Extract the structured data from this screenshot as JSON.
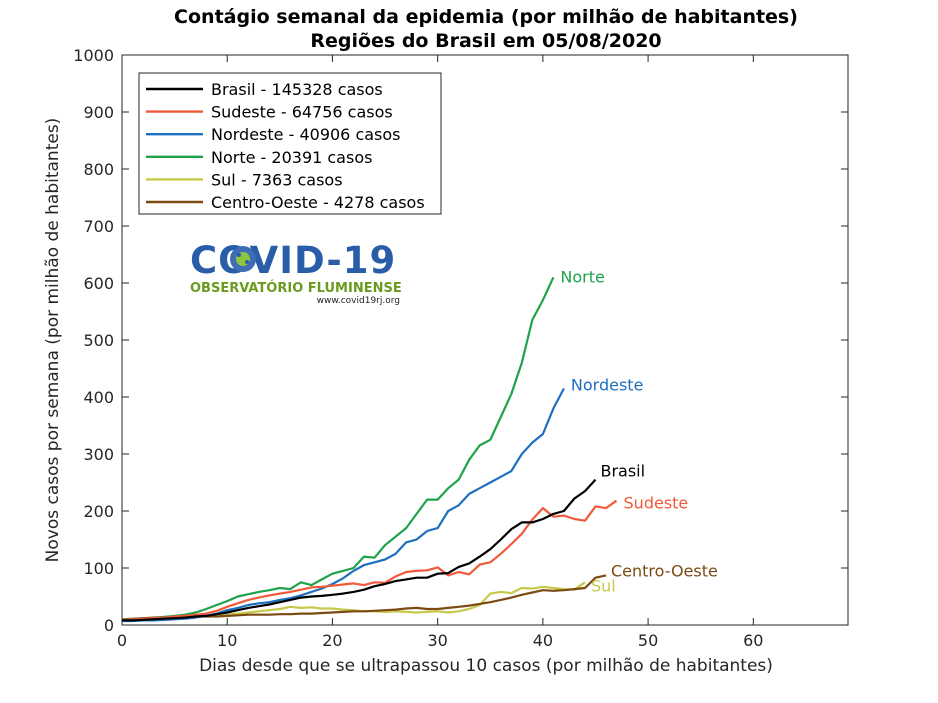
{
  "chart_data": {
    "type": "line",
    "title": "Contágio semanal da epidemia (por milhão de habitantes)",
    "subtitle": "Regiões do Brasil em 05/08/2020",
    "xlabel": "Dias desde que se ultrapassou 10 casos (por milhão de habitantes)",
    "ylabel": "Novos casos por semana (por milhão de habitantes)",
    "xlim": [
      0,
      69
    ],
    "ylim": [
      0,
      1000
    ],
    "xticks": [
      0,
      10,
      20,
      30,
      40,
      50,
      60
    ],
    "yticks": [
      0,
      100,
      200,
      300,
      400,
      500,
      600,
      700,
      800,
      900,
      1000
    ],
    "grid": false,
    "legend_position": "top-left",
    "series": [
      {
        "name": "Brasil - 145328 casos",
        "end_label": "Brasil",
        "color": "#000000",
        "x": [
          0,
          1,
          2,
          3,
          4,
          5,
          6,
          7,
          8,
          9,
          10,
          11,
          12,
          13,
          14,
          15,
          16,
          17,
          18,
          19,
          20,
          21,
          22,
          23,
          24,
          25,
          26,
          27,
          28,
          29,
          30,
          31,
          32,
          33,
          34,
          35,
          36,
          37,
          38,
          39,
          40,
          41,
          42,
          43,
          44,
          45
        ],
        "y": [
          8,
          8,
          9,
          10,
          11,
          12,
          13,
          15,
          16,
          19,
          22,
          26,
          30,
          33,
          36,
          40,
          44,
          48,
          50,
          51,
          53,
          55,
          58,
          62,
          68,
          72,
          77,
          80,
          83,
          83,
          90,
          91,
          102,
          108,
          120,
          133,
          150,
          168,
          180,
          180,
          186,
          195,
          200,
          222,
          235,
          255
        ]
      },
      {
        "name": "Sudeste - 64756 casos",
        "end_label": "Sudeste",
        "color": "#f05a3a",
        "x": [
          0,
          1,
          2,
          3,
          4,
          5,
          6,
          7,
          8,
          9,
          10,
          11,
          12,
          13,
          14,
          15,
          16,
          17,
          18,
          19,
          20,
          21,
          22,
          23,
          24,
          25,
          26,
          27,
          28,
          29,
          30,
          31,
          32,
          33,
          34,
          35,
          36,
          37,
          38,
          39,
          40,
          41,
          42,
          43,
          44,
          45,
          46,
          47
        ],
        "y": [
          9,
          10,
          11,
          12,
          13,
          15,
          16,
          18,
          20,
          25,
          32,
          38,
          44,
          48,
          52,
          55,
          58,
          62,
          66,
          67,
          69,
          71,
          73,
          70,
          75,
          74,
          85,
          93,
          95,
          96,
          101,
          87,
          93,
          89,
          106,
          110,
          125,
          142,
          160,
          185,
          205,
          190,
          192,
          186,
          183,
          208,
          205,
          218
        ]
      },
      {
        "name": "Nordeste - 40906 casos",
        "end_label": "Nordeste",
        "color": "#1f6fc0",
        "x": [
          0,
          1,
          2,
          3,
          4,
          5,
          6,
          7,
          8,
          9,
          10,
          11,
          12,
          13,
          14,
          15,
          16,
          17,
          18,
          19,
          20,
          21,
          22,
          23,
          24,
          25,
          26,
          27,
          28,
          29,
          30,
          31,
          32,
          33,
          34,
          35,
          36,
          37,
          38,
          39,
          40,
          41,
          42
        ],
        "y": [
          7,
          7,
          8,
          8,
          9,
          10,
          11,
          13,
          16,
          20,
          26,
          30,
          35,
          38,
          40,
          44,
          47,
          52,
          58,
          64,
          72,
          82,
          95,
          105,
          110,
          115,
          125,
          145,
          150,
          165,
          170,
          200,
          210,
          230,
          240,
          250,
          260,
          270,
          300,
          320,
          335,
          380,
          415
        ]
      },
      {
        "name": "Norte - 20391 casos",
        "end_label": "Norte",
        "color": "#1ea34a",
        "x": [
          0,
          1,
          2,
          3,
          4,
          5,
          6,
          7,
          8,
          9,
          10,
          11,
          12,
          13,
          14,
          15,
          16,
          17,
          18,
          19,
          20,
          21,
          22,
          23,
          24,
          25,
          26,
          27,
          28,
          29,
          30,
          31,
          32,
          33,
          34,
          35,
          36,
          37,
          38,
          39,
          40,
          41
        ],
        "y": [
          10,
          10,
          11,
          12,
          14,
          16,
          18,
          22,
          28,
          35,
          42,
          50,
          54,
          58,
          61,
          65,
          63,
          75,
          70,
          80,
          90,
          95,
          100,
          120,
          118,
          140,
          155,
          170,
          195,
          220,
          220,
          240,
          255,
          290,
          315,
          325,
          365,
          405,
          460,
          535,
          570,
          610
        ]
      },
      {
        "name": "Sul - 7363 casos",
        "end_label": "Sul",
        "color": "#c7c94a",
        "x": [
          0,
          1,
          2,
          3,
          4,
          5,
          6,
          7,
          8,
          9,
          10,
          11,
          12,
          13,
          14,
          15,
          16,
          17,
          18,
          19,
          20,
          21,
          22,
          23,
          24,
          25,
          26,
          27,
          28,
          29,
          30,
          31,
          32,
          33,
          34,
          35,
          36,
          37,
          38,
          39,
          40,
          41,
          42,
          43,
          44
        ],
        "y": [
          8,
          8,
          9,
          10,
          11,
          12,
          13,
          14,
          15,
          17,
          18,
          20,
          22,
          24,
          26,
          28,
          32,
          30,
          31,
          29,
          29,
          27,
          26,
          24,
          24,
          23,
          24,
          23,
          22,
          23,
          24,
          22,
          24,
          28,
          35,
          55,
          58,
          56,
          65,
          64,
          67,
          65,
          63,
          62,
          75
        ]
      },
      {
        "name": "Centro-Oeste - 4278 casos",
        "end_label": "Centro-Oeste",
        "color": "#7b4a12",
        "x": [
          0,
          1,
          2,
          3,
          4,
          5,
          6,
          7,
          8,
          9,
          10,
          11,
          12,
          13,
          14,
          15,
          16,
          17,
          18,
          19,
          20,
          21,
          22,
          23,
          24,
          25,
          26,
          27,
          28,
          29,
          30,
          31,
          32,
          33,
          34,
          35,
          36,
          37,
          38,
          39,
          40,
          41,
          42,
          43,
          44,
          45,
          46
        ],
        "y": [
          10,
          11,
          12,
          13,
          14,
          15,
          16,
          16,
          15,
          15,
          16,
          17,
          18,
          18,
          18,
          19,
          19,
          20,
          20,
          21,
          22,
          23,
          24,
          24,
          25,
          26,
          27,
          29,
          30,
          28,
          28,
          30,
          32,
          34,
          37,
          40,
          44,
          48,
          53,
          57,
          61,
          60,
          61,
          63,
          65,
          83,
          87
        ]
      }
    ]
  },
  "logo": {
    "title": "COVID-19",
    "subtitle": "OBSERVATÓRIO FLUMINENSE",
    "url": "www.covid19rj.org"
  }
}
